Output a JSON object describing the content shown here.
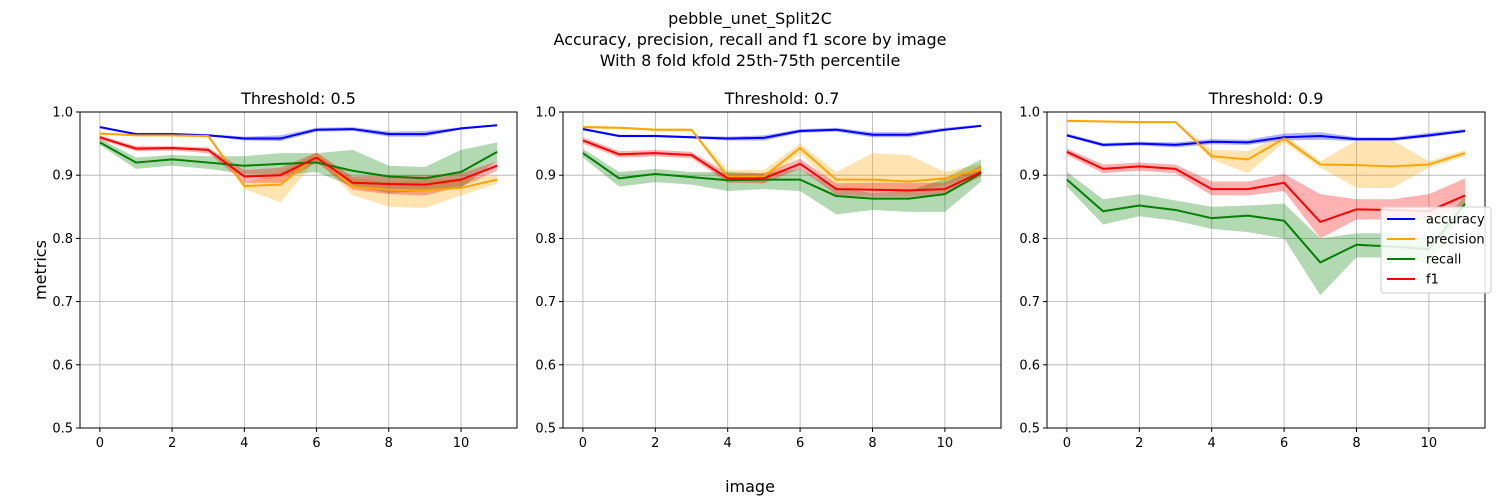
{
  "figure": {
    "title_lines": [
      "pebble_unet_Split2C",
      "Accuracy, precision, recall and f1 score by image",
      "With 8 fold kfold 25th-75th percentile"
    ],
    "xlabel": "image",
    "ylabel": "metrics"
  },
  "colors": {
    "accuracy": "#0000ff",
    "precision": "#ffa500",
    "recall": "#008000",
    "f1": "#ff0000",
    "grid": "#b0b0b0"
  },
  "legend": {
    "placement": "right",
    "entries": [
      "accuracy",
      "precision",
      "recall",
      "f1"
    ]
  },
  "chart_data": [
    {
      "type": "line",
      "title": "Threshold: 0.5",
      "xlim": [
        -0.55,
        11.55
      ],
      "ylim": [
        0.5,
        1.0
      ],
      "grid": true,
      "x": [
        0,
        1,
        2,
        3,
        4,
        5,
        6,
        7,
        8,
        9,
        10,
        11
      ],
      "x_ticks": [
        "0",
        "2",
        "4",
        "6",
        "8",
        "10"
      ],
      "y_ticks": [
        "0.5",
        "0.6",
        "0.7",
        "0.8",
        "0.9",
        "1.0"
      ],
      "series": [
        {
          "name": "accuracy",
          "values": [
            0.976,
            0.965,
            0.965,
            0.963,
            0.958,
            0.958,
            0.972,
            0.973,
            0.965,
            0.965,
            0.974,
            0.979
          ],
          "band_low": [
            0.975,
            0.964,
            0.964,
            0.962,
            0.955,
            0.954,
            0.969,
            0.97,
            0.961,
            0.961,
            0.972,
            0.978
          ],
          "band_high": [
            0.978,
            0.967,
            0.967,
            0.965,
            0.961,
            0.963,
            0.975,
            0.976,
            0.969,
            0.97,
            0.976,
            0.98
          ]
        },
        {
          "name": "precision",
          "values": [
            0.966,
            0.963,
            0.963,
            0.962,
            0.883,
            0.885,
            0.93,
            0.882,
            0.877,
            0.876,
            0.88,
            0.893
          ],
          "band_low": [
            0.964,
            0.962,
            0.961,
            0.96,
            0.878,
            0.857,
            0.925,
            0.868,
            0.85,
            0.848,
            0.868,
            0.886
          ],
          "band_high": [
            0.968,
            0.965,
            0.965,
            0.964,
            0.888,
            0.905,
            0.935,
            0.895,
            0.89,
            0.892,
            0.895,
            0.9
          ]
        },
        {
          "name": "recall",
          "values": [
            0.952,
            0.92,
            0.925,
            0.92,
            0.915,
            0.918,
            0.92,
            0.907,
            0.898,
            0.895,
            0.905,
            0.937
          ],
          "band_low": [
            0.948,
            0.91,
            0.915,
            0.91,
            0.902,
            0.9,
            0.905,
            0.882,
            0.872,
            0.875,
            0.88,
            0.923
          ],
          "band_high": [
            0.958,
            0.928,
            0.932,
            0.93,
            0.93,
            0.935,
            0.935,
            0.94,
            0.915,
            0.913,
            0.94,
            0.952
          ]
        },
        {
          "name": "f1",
          "values": [
            0.96,
            0.942,
            0.943,
            0.94,
            0.898,
            0.9,
            0.928,
            0.888,
            0.886,
            0.885,
            0.893,
            0.915
          ],
          "band_low": [
            0.956,
            0.938,
            0.939,
            0.935,
            0.888,
            0.888,
            0.92,
            0.877,
            0.87,
            0.868,
            0.882,
            0.907
          ],
          "band_high": [
            0.963,
            0.946,
            0.946,
            0.944,
            0.908,
            0.912,
            0.936,
            0.898,
            0.9,
            0.9,
            0.903,
            0.922
          ]
        }
      ]
    },
    {
      "type": "line",
      "title": "Threshold: 0.7",
      "xlim": [
        -0.55,
        11.55
      ],
      "ylim": [
        0.5,
        1.0
      ],
      "grid": true,
      "x": [
        0,
        1,
        2,
        3,
        4,
        5,
        6,
        7,
        8,
        9,
        10,
        11
      ],
      "x_ticks": [
        "0",
        "2",
        "4",
        "6",
        "8",
        "10"
      ],
      "y_ticks": [
        "0.5",
        "0.6",
        "0.7",
        "0.8",
        "0.9",
        "1.0"
      ],
      "series": [
        {
          "name": "accuracy",
          "values": [
            0.973,
            0.962,
            0.962,
            0.96,
            0.958,
            0.959,
            0.97,
            0.972,
            0.964,
            0.964,
            0.972,
            0.978
          ],
          "band_low": [
            0.971,
            0.96,
            0.96,
            0.958,
            0.955,
            0.955,
            0.967,
            0.969,
            0.96,
            0.96,
            0.97,
            0.977
          ],
          "band_high": [
            0.975,
            0.964,
            0.964,
            0.962,
            0.961,
            0.963,
            0.973,
            0.975,
            0.968,
            0.968,
            0.975,
            0.98
          ]
        },
        {
          "name": "precision",
          "values": [
            0.976,
            0.975,
            0.972,
            0.972,
            0.898,
            0.898,
            0.943,
            0.893,
            0.893,
            0.89,
            0.895,
            0.91
          ],
          "band_low": [
            0.974,
            0.973,
            0.97,
            0.97,
            0.893,
            0.888,
            0.935,
            0.88,
            0.875,
            0.872,
            0.885,
            0.903
          ],
          "band_high": [
            0.978,
            0.977,
            0.974,
            0.974,
            0.908,
            0.908,
            0.95,
            0.905,
            0.935,
            0.932,
            0.905,
            0.918
          ]
        },
        {
          "name": "recall",
          "values": [
            0.935,
            0.895,
            0.902,
            0.897,
            0.892,
            0.893,
            0.893,
            0.867,
            0.863,
            0.863,
            0.87,
            0.903
          ],
          "band_low": [
            0.928,
            0.882,
            0.889,
            0.885,
            0.875,
            0.878,
            0.875,
            0.838,
            0.845,
            0.842,
            0.842,
            0.89
          ],
          "band_high": [
            0.942,
            0.905,
            0.91,
            0.905,
            0.905,
            0.903,
            0.91,
            0.88,
            0.872,
            0.875,
            0.895,
            0.925
          ]
        },
        {
          "name": "f1",
          "values": [
            0.955,
            0.933,
            0.935,
            0.932,
            0.895,
            0.895,
            0.918,
            0.878,
            0.877,
            0.876,
            0.878,
            0.905
          ],
          "band_low": [
            0.95,
            0.928,
            0.93,
            0.927,
            0.888,
            0.887,
            0.91,
            0.869,
            0.866,
            0.866,
            0.87,
            0.898
          ],
          "band_high": [
            0.96,
            0.938,
            0.94,
            0.937,
            0.903,
            0.903,
            0.926,
            0.887,
            0.888,
            0.888,
            0.888,
            0.915
          ]
        }
      ]
    },
    {
      "type": "line",
      "title": "Threshold: 0.9",
      "xlim": [
        -0.55,
        11.55
      ],
      "ylim": [
        0.5,
        1.0
      ],
      "grid": true,
      "x": [
        0,
        1,
        2,
        3,
        4,
        5,
        6,
        7,
        8,
        9,
        10,
        11
      ],
      "x_ticks": [
        "0",
        "2",
        "4",
        "6",
        "8",
        "10"
      ],
      "y_ticks": [
        "0.5",
        "0.6",
        "0.7",
        "0.8",
        "0.9",
        "1.0"
      ],
      "series": [
        {
          "name": "accuracy",
          "values": [
            0.963,
            0.948,
            0.95,
            0.948,
            0.953,
            0.952,
            0.96,
            0.962,
            0.957,
            0.957,
            0.963,
            0.97
          ],
          "band_low": [
            0.961,
            0.945,
            0.947,
            0.944,
            0.949,
            0.948,
            0.955,
            0.956,
            0.954,
            0.954,
            0.96,
            0.968
          ],
          "band_high": [
            0.966,
            0.951,
            0.953,
            0.952,
            0.957,
            0.956,
            0.966,
            0.968,
            0.96,
            0.96,
            0.967,
            0.973
          ]
        },
        {
          "name": "precision",
          "values": [
            0.986,
            0.985,
            0.984,
            0.984,
            0.93,
            0.925,
            0.958,
            0.917,
            0.916,
            0.914,
            0.917,
            0.935
          ],
          "band_low": [
            0.985,
            0.984,
            0.983,
            0.983,
            0.925,
            0.903,
            0.952,
            0.912,
            0.88,
            0.88,
            0.912,
            0.93
          ],
          "band_high": [
            0.988,
            0.987,
            0.986,
            0.986,
            0.94,
            0.938,
            0.965,
            0.922,
            0.955,
            0.955,
            0.922,
            0.94
          ]
        },
        {
          "name": "recall",
          "values": [
            0.893,
            0.843,
            0.852,
            0.845,
            0.832,
            0.836,
            0.828,
            0.762,
            0.79,
            0.787,
            0.783,
            0.855
          ],
          "band_low": [
            0.882,
            0.822,
            0.835,
            0.828,
            0.815,
            0.81,
            0.8,
            0.71,
            0.77,
            0.77,
            0.76,
            0.842
          ],
          "band_high": [
            0.905,
            0.862,
            0.87,
            0.86,
            0.85,
            0.852,
            0.855,
            0.8,
            0.808,
            0.808,
            0.8,
            0.868
          ]
        },
        {
          "name": "f1",
          "values": [
            0.937,
            0.91,
            0.914,
            0.91,
            0.878,
            0.878,
            0.888,
            0.826,
            0.846,
            0.845,
            0.843,
            0.868
          ],
          "band_low": [
            0.932,
            0.903,
            0.907,
            0.903,
            0.868,
            0.868,
            0.875,
            0.8,
            0.83,
            0.83,
            0.828,
            0.852
          ],
          "band_high": [
            0.942,
            0.917,
            0.92,
            0.917,
            0.89,
            0.89,
            0.902,
            0.87,
            0.862,
            0.862,
            0.87,
            0.895
          ]
        }
      ]
    }
  ]
}
